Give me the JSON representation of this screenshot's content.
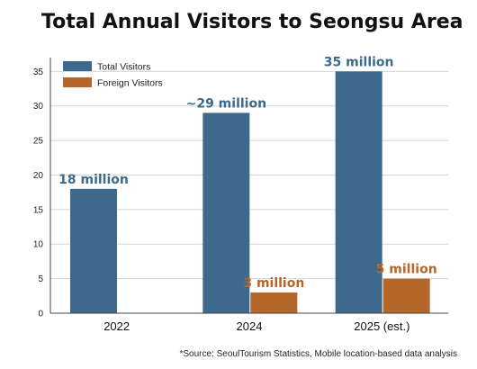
{
  "chart_data": {
    "type": "bar",
    "title": "Total Annual Visitors to Seongsu Area",
    "xlabel": "",
    "ylabel": "",
    "categories": [
      "2022",
      "2024",
      "2025 (est.)"
    ],
    "ylim": [
      0,
      37
    ],
    "yticks": [
      0,
      5,
      10,
      15,
      20,
      25,
      30,
      35
    ],
    "grid": true,
    "legend_position": "top-left",
    "series": [
      {
        "name": "Total Visitors",
        "color": "#3d6a8c",
        "label_color": "#3d6a8c",
        "values": [
          18,
          29,
          35
        ],
        "data_labels": [
          "18 million",
          "~29 million",
          "35 million"
        ]
      },
      {
        "name": "Foreign Visitors",
        "color": "#b5662a",
        "label_color": "#b5662a",
        "values": [
          null,
          3,
          5
        ],
        "data_labels": [
          "",
          "3 million",
          "5 million"
        ]
      }
    ]
  },
  "source_note": "*Source: SeoulTourism Statistics, Mobile location-based data analysis"
}
